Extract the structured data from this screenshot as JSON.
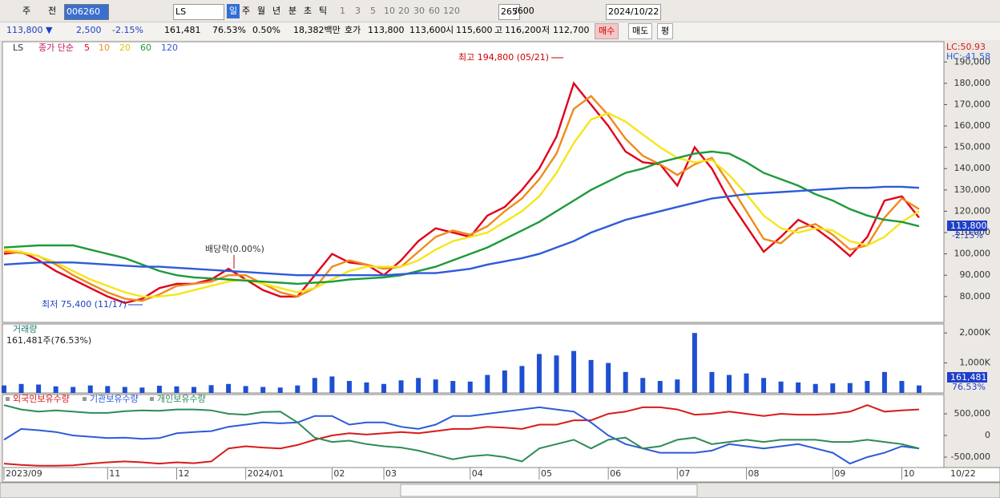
{
  "toolbar": [
    "주",
    "전",
    "006260",
    "LS",
    "일",
    "주",
    "월",
    "년",
    "분",
    "초",
    "틱",
    "1",
    "3",
    "5",
    "10",
    "20",
    "30",
    "60",
    "120",
    "265",
    "/600",
    "2024/10/22"
  ],
  "info_bar": [
    "113,800 ▼",
    "2,500",
    "-2.15%",
    "161,481",
    "76.53%",
    "0.50%",
    "18,382백만",
    "호가",
    "113,800",
    "113,600",
    "시",
    "115,600",
    "고",
    "116,200",
    "저",
    "112,700",
    "매수",
    "매도",
    "평"
  ],
  "chart_data": [
    {
      "type": "line",
      "legend_prefix": "종가 단순",
      "panel_label": "LS",
      "lc_label": "LC:50.93",
      "hc_label": "HC:-41.58",
      "last_label": "113,800",
      "last_change": "-2.15%",
      "annotations": [
        "최고 194,800 (05/21)",
        "최저 75,400 (11/17)",
        "배당락(0.00%)"
      ],
      "ylim": [
        67900,
        199500
      ],
      "yticks": [
        {
          "value": 80000,
          "label": "80,000"
        },
        {
          "value": 90000,
          "label": "90,000"
        },
        {
          "value": 100000,
          "label": "100,000"
        },
        {
          "value": 110000,
          "label": "110,000"
        },
        {
          "value": 120000,
          "label": "120,000"
        },
        {
          "value": 130000,
          "label": "130,000"
        },
        {
          "value": 140000,
          "label": "140,000"
        },
        {
          "value": 150000,
          "label": "150,000"
        },
        {
          "value": 160000,
          "label": "160,000"
        },
        {
          "value": 170000,
          "label": "170,000"
        },
        {
          "value": 180000,
          "label": "180,000"
        },
        {
          "value": 190000,
          "label": "190,000"
        }
      ],
      "series": [
        {
          "name": "5",
          "color": "#e0001b",
          "values": [
            100000,
            101000,
            97000,
            92000,
            88000,
            84000,
            80000,
            77000,
            79000,
            84000,
            86000,
            86000,
            88000,
            93000,
            88000,
            83000,
            80000,
            80000,
            90000,
            100000,
            96000,
            95000,
            90000,
            97000,
            106000,
            112000,
            110000,
            108000,
            118000,
            122000,
            130000,
            140000,
            155000,
            180000,
            170000,
            160000,
            148000,
            143000,
            142000,
            132000,
            150000,
            140000,
            125000,
            113000,
            101000,
            108000,
            116000,
            112000,
            106000,
            99000,
            108000,
            125000,
            127000,
            117000
          ]
        },
        {
          "name": "10",
          "color": "#f08a1c",
          "values": [
            101000,
            100500,
            99000,
            95000,
            90000,
            86000,
            82000,
            79000,
            78000,
            81000,
            85000,
            86000,
            87000,
            90000,
            90000,
            86000,
            82000,
            80000,
            84000,
            94000,
            97000,
            95000,
            93000,
            94000,
            101000,
            108000,
            111000,
            109000,
            113000,
            120000,
            126000,
            135000,
            147000,
            168000,
            174000,
            165000,
            154000,
            146000,
            142000,
            137000,
            142000,
            145000,
            133000,
            120000,
            107000,
            105000,
            112000,
            114000,
            109000,
            102000,
            104000,
            117000,
            126000,
            121000
          ]
        },
        {
          "name": "20",
          "color": "#f5e61a",
          "values": [
            102000,
            101000,
            99000,
            96000,
            92000,
            88000,
            85000,
            82000,
            80000,
            80000,
            81000,
            83000,
            85000,
            87000,
            88000,
            86000,
            84000,
            82000,
            84000,
            88000,
            92000,
            94000,
            94000,
            94000,
            97000,
            102000,
            106000,
            108000,
            110000,
            115000,
            120000,
            127000,
            138000,
            152000,
            163000,
            166000,
            162000,
            156000,
            150000,
            145000,
            143000,
            144000,
            137000,
            128000,
            118000,
            112000,
            110000,
            112000,
            111000,
            106000,
            104000,
            108000,
            115000,
            120000
          ]
        },
        {
          "name": "60",
          "color": "#1e9a3a",
          "values": [
            103000,
            103500,
            104000,
            104000,
            104000,
            102000,
            100000,
            98000,
            95000,
            92000,
            90000,
            89000,
            88500,
            88000,
            87500,
            87000,
            86500,
            86000,
            86500,
            87000,
            88000,
            88500,
            89000,
            90000,
            92000,
            94000,
            97000,
            100000,
            103000,
            107000,
            111000,
            115000,
            120000,
            125000,
            130000,
            134000,
            138000,
            140000,
            143000,
            145000,
            147000,
            148000,
            147000,
            143000,
            138000,
            135000,
            132000,
            128000,
            125000,
            121000,
            118000,
            116000,
            115000,
            113000
          ]
        },
        {
          "name": "120",
          "color": "#2d5bd8",
          "values": [
            95000,
            95500,
            96000,
            96000,
            96000,
            95500,
            95000,
            94500,
            94000,
            94000,
            93500,
            93000,
            92500,
            92000,
            91500,
            91000,
            90500,
            90000,
            90000,
            90000,
            90000,
            90000,
            90000,
            90500,
            91000,
            91000,
            92000,
            93000,
            95000,
            96500,
            98000,
            100000,
            103000,
            106000,
            110000,
            113000,
            116000,
            118000,
            120000,
            122000,
            124000,
            126000,
            127000,
            128000,
            128500,
            129000,
            129500,
            130000,
            130500,
            131000,
            131000,
            131500,
            131500,
            131000
          ]
        }
      ]
    },
    {
      "type": "bar",
      "title": "거래량",
      "subtitle": "161,481주(76.53%)",
      "last_label": "161,481",
      "last_change": "76.53%",
      "color": "#1f4fd1",
      "ylim": [
        0,
        2300000
      ],
      "yticks": [
        {
          "value": 1000000,
          "label": "1,000K"
        },
        {
          "value": 2000000,
          "label": "2,000K"
        }
      ],
      "values": [
        250000,
        300000,
        280000,
        220000,
        200000,
        250000,
        230000,
        200000,
        180000,
        240000,
        220000,
        200000,
        260000,
        300000,
        230000,
        200000,
        180000,
        250000,
        500000,
        550000,
        400000,
        350000,
        300000,
        420000,
        500000,
        450000,
        400000,
        380000,
        600000,
        750000,
        900000,
        1300000,
        1250000,
        1400000,
        1100000,
        1000000,
        700000,
        500000,
        400000,
        450000,
        2000000,
        700000,
        600000,
        650000,
        500000,
        380000,
        350000,
        300000,
        320000,
        330000,
        400000,
        700000,
        400000,
        250000
      ]
    },
    {
      "type": "line",
      "x_end_label": "10/22",
      "categories": [
        "2023/09",
        null,
        null,
        null,
        null,
        null,
        "11",
        null,
        null,
        null,
        "12",
        null,
        null,
        null,
        "2024/01",
        null,
        null,
        null,
        null,
        "02",
        null,
        null,
        "03",
        null,
        null,
        null,
        null,
        "04",
        null,
        null,
        null,
        "05",
        null,
        null,
        null,
        "06",
        null,
        null,
        null,
        "07",
        null,
        null,
        null,
        "08",
        null,
        null,
        null,
        null,
        "09",
        null,
        null,
        null,
        "10",
        null
      ],
      "ylim": [
        -740000,
        944000
      ],
      "yticks": [
        {
          "value": -500000,
          "label": "-500,000"
        },
        0,
        {
          "value": 500000,
          "label": "500,000"
        }
      ],
      "series": [
        {
          "name": "외국인보유수량",
          "color": "#d81b1b",
          "values": [
            -650000,
            -680000,
            -700000,
            -700000,
            -690000,
            -650000,
            -620000,
            -600000,
            -620000,
            -650000,
            -620000,
            -640000,
            -600000,
            -300000,
            -250000,
            -280000,
            -300000,
            -220000,
            -100000,
            0,
            50000,
            20000,
            50000,
            80000,
            50000,
            100000,
            150000,
            150000,
            200000,
            180000,
            150000,
            250000,
            250000,
            350000,
            350000,
            500000,
            550000,
            650000,
            650000,
            600000,
            480000,
            500000,
            550000,
            500000,
            450000,
            500000,
            480000,
            480000,
            500000,
            550000,
            700000,
            550000,
            580000,
            600000
          ]
        },
        {
          "name": "기관보유수량",
          "color": "#2d5bd8",
          "values": [
            -100000,
            150000,
            120000,
            80000,
            0,
            -30000,
            -60000,
            -50000,
            -80000,
            -60000,
            50000,
            80000,
            100000,
            200000,
            250000,
            300000,
            280000,
            300000,
            450000,
            450000,
            250000,
            300000,
            300000,
            200000,
            150000,
            250000,
            450000,
            450000,
            500000,
            550000,
            600000,
            650000,
            600000,
            550000,
            300000,
            0,
            -200000,
            -300000,
            -400000,
            -400000,
            -400000,
            -350000,
            -200000,
            -250000,
            -300000,
            -250000,
            -200000,
            -300000,
            -400000,
            -650000,
            -500000,
            -400000,
            -250000,
            -300000
          ]
        },
        {
          "name": "개인보유수량",
          "color": "#2e8b57",
          "values": [
            700000,
            600000,
            550000,
            580000,
            550000,
            520000,
            520000,
            560000,
            580000,
            570000,
            600000,
            600000,
            580000,
            500000,
            480000,
            540000,
            550000,
            300000,
            -50000,
            -150000,
            -120000,
            -200000,
            -250000,
            -280000,
            -350000,
            -450000,
            -550000,
            -480000,
            -450000,
            -500000,
            -600000,
            -300000,
            -200000,
            -100000,
            -300000,
            -100000,
            -50000,
            -300000,
            -250000,
            -100000,
            -50000,
            -200000,
            -150000,
            -100000,
            -150000,
            -100000,
            -100000,
            -100000,
            -150000,
            -150000,
            -100000,
            -150000,
            -200000,
            -300000
          ]
        }
      ]
    }
  ]
}
